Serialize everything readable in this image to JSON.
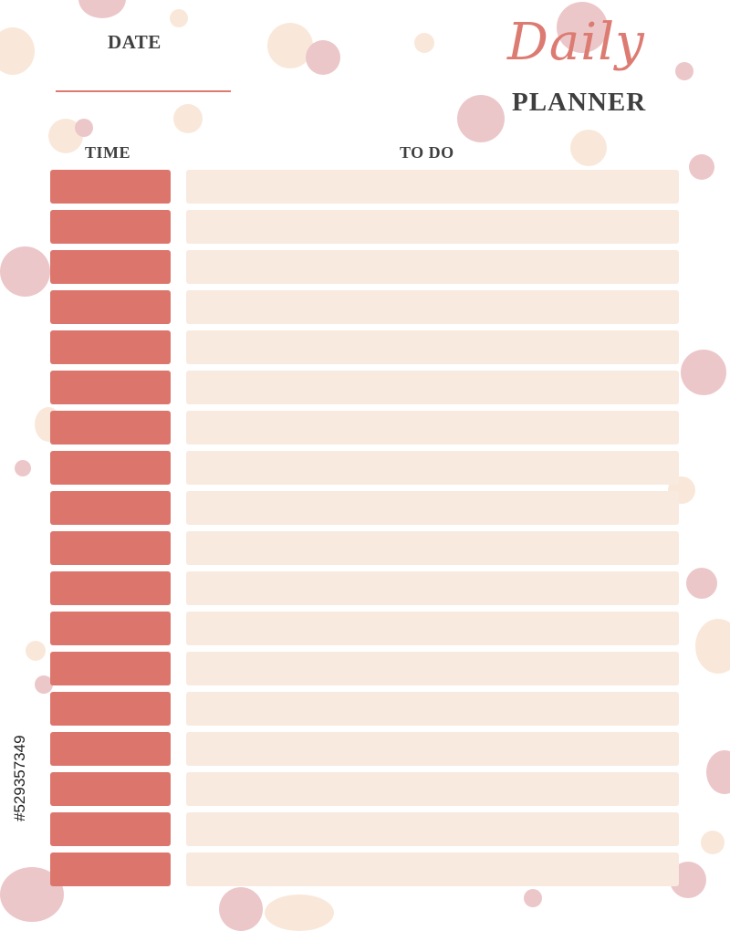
{
  "header": {
    "date_label": "DATE",
    "title_script": "Daily",
    "title_main": "PLANNER"
  },
  "columns": {
    "time": "TIME",
    "todo": "TO DO"
  },
  "planner_rows": [
    {
      "time": "",
      "task": ""
    },
    {
      "time": "",
      "task": ""
    },
    {
      "time": "",
      "task": ""
    },
    {
      "time": "",
      "task": ""
    },
    {
      "time": "",
      "task": ""
    },
    {
      "time": "",
      "task": ""
    },
    {
      "time": "",
      "task": ""
    },
    {
      "time": "",
      "task": ""
    },
    {
      "time": "",
      "task": ""
    },
    {
      "time": "",
      "task": ""
    },
    {
      "time": "",
      "task": ""
    },
    {
      "time": "",
      "task": ""
    },
    {
      "time": "",
      "task": ""
    },
    {
      "time": "",
      "task": ""
    },
    {
      "time": "",
      "task": ""
    },
    {
      "time": "",
      "task": ""
    },
    {
      "time": "",
      "task": ""
    },
    {
      "time": "",
      "task": ""
    }
  ],
  "watermark_id": "#529357349",
  "colors": {
    "accent": "#dc766d",
    "row_fill": "#f8eadf",
    "text": "#3f3f3f",
    "dot_pink": "#ecc7c9",
    "dot_cream": "#f9e8da"
  }
}
